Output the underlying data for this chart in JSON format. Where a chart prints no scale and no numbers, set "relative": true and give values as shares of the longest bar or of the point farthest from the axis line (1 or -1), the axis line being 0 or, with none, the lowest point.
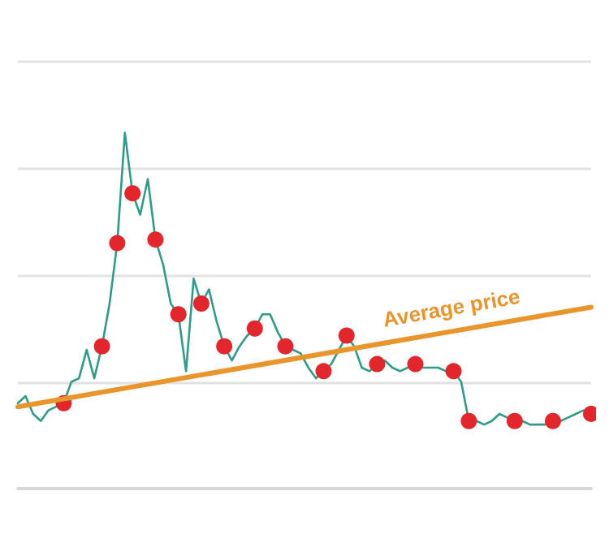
{
  "chart_data": {
    "type": "line",
    "relative": true,
    "grid": "y",
    "legend": false,
    "categories": [
      null,
      null,
      null,
      null,
      null,
      null,
      null,
      null,
      null,
      null,
      null,
      null,
      null,
      null,
      null,
      null,
      null,
      null,
      null,
      null,
      null,
      null,
      null,
      null,
      null,
      null,
      null,
      null,
      null,
      null,
      null,
      null,
      null,
      null,
      null,
      null,
      null,
      null,
      null,
      null,
      null,
      null,
      null,
      null,
      null,
      null,
      null,
      null,
      null,
      null,
      null,
      null,
      null,
      null,
      null,
      null,
      null,
      null,
      null,
      null,
      null,
      null,
      null,
      null,
      null,
      null,
      null,
      null,
      null,
      null,
      null,
      null,
      null,
      null,
      null,
      null
    ],
    "series": [
      {
        "color": "#2e9c86",
        "values": [
          0.24,
          0.26,
          0.21,
          0.19,
          0.22,
          0.23,
          0.24,
          0.3,
          0.31,
          0.39,
          0.31,
          0.4,
          0.52,
          0.69,
          1.0,
          0.83,
          0.77,
          0.87,
          0.7,
          0.63,
          0.52,
          0.49,
          0.33,
          0.59,
          0.52,
          0.56,
          0.47,
          0.4,
          0.36,
          0.4,
          0.43,
          0.45,
          0.49,
          0.49,
          0.44,
          0.4,
          0.39,
          0.38,
          0.34,
          0.31,
          0.33,
          0.35,
          0.39,
          0.43,
          0.4,
          0.34,
          0.33,
          0.35,
          0.36,
          0.34,
          0.33,
          0.34,
          0.35,
          0.34,
          0.34,
          0.34,
          0.33,
          0.33,
          0.3,
          0.19,
          0.19,
          0.18,
          0.19,
          0.21,
          0.2,
          0.19,
          0.19,
          0.18,
          0.18,
          0.18,
          0.19,
          0.19,
          0.2,
          0.21,
          0.22,
          0.21
        ],
        "colors": [
          null,
          null,
          null,
          null,
          null,
          null,
          "#e3262b",
          null,
          null,
          null,
          null,
          "#e3262b",
          null,
          "#e3262b",
          null,
          "#e3262b",
          null,
          null,
          "#e3262b",
          null,
          null,
          "#e3262b",
          null,
          null,
          "#e3262b",
          null,
          null,
          "#e3262b",
          null,
          null,
          null,
          "#e3262b",
          null,
          null,
          null,
          "#e3262b",
          null,
          null,
          null,
          null,
          "#e3262b",
          null,
          null,
          "#e3262b",
          null,
          null,
          null,
          "#e3262b",
          null,
          null,
          null,
          null,
          "#e3262b",
          null,
          null,
          null,
          null,
          "#e3262b",
          null,
          "#e3262b",
          null,
          null,
          null,
          null,
          null,
          "#e3262b",
          null,
          null,
          null,
          null,
          "#e3262b",
          null,
          null,
          null,
          null,
          "#e3262b"
        ]
      },
      {
        "type": "line",
        "name": "Average price",
        "color": "#e8952c",
        "values": [
          0.23,
          null,
          null,
          null,
          null,
          null,
          null,
          null,
          null,
          null,
          null,
          null,
          null,
          null,
          null,
          null,
          null,
          null,
          null,
          null,
          null,
          null,
          null,
          null,
          null,
          null,
          null,
          null,
          null,
          null,
          null,
          null,
          null,
          null,
          null,
          null,
          null,
          null,
          null,
          null,
          null,
          null,
          null,
          null,
          null,
          null,
          null,
          null,
          null,
          null,
          null,
          null,
          null,
          null,
          null,
          null,
          null,
          null,
          null,
          null,
          null,
          null,
          null,
          null,
          null,
          null,
          null,
          null,
          null,
          null,
          null,
          null,
          null,
          null,
          null,
          0.51
        ]
      }
    ]
  }
}
